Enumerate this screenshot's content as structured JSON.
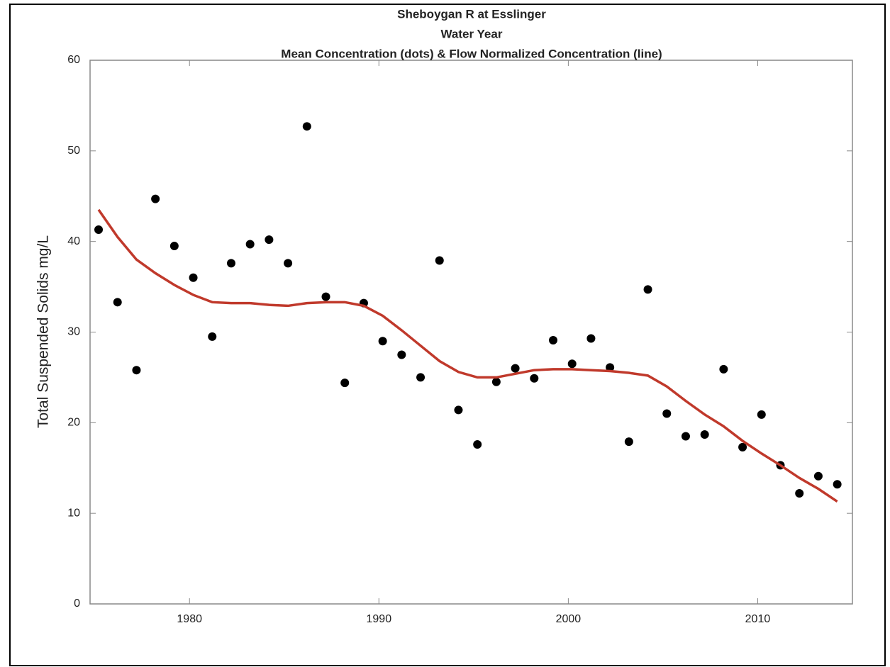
{
  "chart_data": {
    "type": "scatter",
    "title": [
      "Sheboygan R at Esslinger",
      "Water Year",
      "Mean Concentration (dots) & Flow Normalized Concentration (line)"
    ],
    "y_label": "Total Suspended Solids mg/L",
    "x": [
      1975.2,
      1976.2,
      1977.2,
      1978.2,
      1979.2,
      1980.2,
      1981.2,
      1982.2,
      1983.2,
      1984.2,
      1985.2,
      1986.2,
      1987.2,
      1988.2,
      1989.2,
      1990.2,
      1991.2,
      1992.2,
      1993.2,
      1994.2,
      1995.2,
      1996.2,
      1997.2,
      1998.2,
      1999.2,
      2000.2,
      2001.2,
      2002.2,
      2003.2,
      2004.2,
      2005.2,
      2006.2,
      2007.2,
      2008.2,
      2009.2,
      2010.2,
      2011.2,
      2012.2,
      2013.2,
      2014.2
    ],
    "series": [
      {
        "mode": "markers",
        "color": "#000000",
        "values": [
          41.3,
          33.3,
          25.8,
          44.7,
          39.5,
          36.0,
          29.5,
          37.6,
          39.7,
          40.2,
          37.6,
          52.7,
          33.9,
          24.4,
          33.2,
          29.0,
          27.5,
          25.0,
          37.9,
          21.4,
          17.6,
          24.5,
          26.0,
          24.9,
          29.1,
          26.5,
          29.3,
          26.1,
          17.9,
          34.7,
          21.0,
          18.5,
          18.7,
          25.9,
          17.3,
          20.9,
          15.3,
          12.2,
          14.1,
          13.2
        ]
      },
      {
        "mode": "lines",
        "color": "#c0392b",
        "values": [
          43.5,
          40.5,
          38.0,
          36.5,
          35.2,
          34.1,
          33.3,
          33.2,
          33.2,
          33.0,
          32.9,
          33.2,
          33.3,
          33.3,
          32.9,
          31.8,
          30.2,
          28.5,
          26.8,
          25.6,
          25.0,
          25.0,
          25.4,
          25.8,
          25.9,
          25.9,
          25.8,
          25.7,
          25.5,
          25.2,
          24.0,
          22.4,
          20.9,
          19.6,
          18.0,
          16.6,
          15.3,
          13.9,
          12.7,
          11.3
        ]
      }
    ],
    "xlim": [
      1974.75,
      2015
    ],
    "ylim": [
      0,
      60
    ],
    "xticks": [
      1980,
      1990,
      2000,
      2010
    ],
    "yticks": [
      0,
      10,
      20,
      30,
      40,
      50,
      60
    ]
  }
}
